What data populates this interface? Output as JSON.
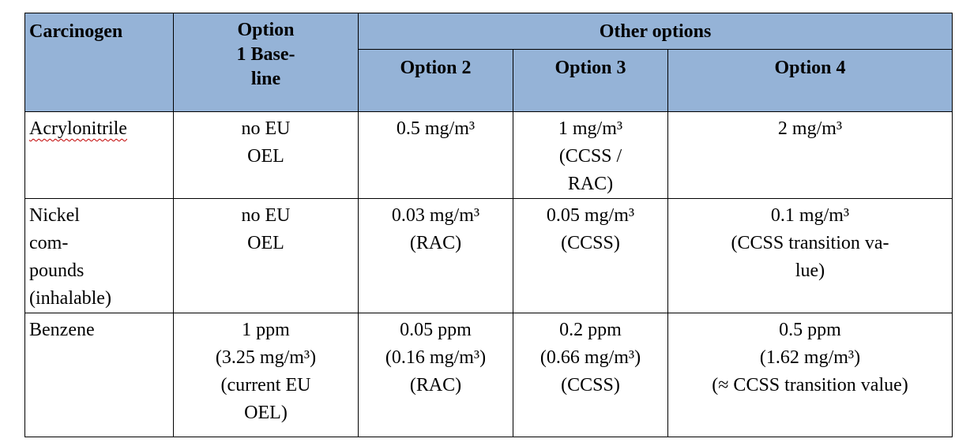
{
  "headers": {
    "carcinogen": "Carcinogen",
    "option1": "Option\n1 Base-\nline",
    "other_options": "Other options",
    "option2": "Option 2",
    "option3": "Option 3",
    "option4": "Option 4"
  },
  "rows": [
    {
      "carcinogen": "Acrylonitrile",
      "option1": "no EU\nOEL",
      "option2": "0.5 mg/m³",
      "option3": "1 mg/m³\n(CCSS /\nRAC)",
      "option4": "2 mg/m³"
    },
    {
      "carcinogen": "Nickel\ncom-\npounds\n(inhalable)",
      "option1": "no EU\nOEL",
      "option2": "0.03 mg/m³\n(RAC)",
      "option3": "0.05 mg/m³\n(CCSS)",
      "option4": "0.1 mg/m³\n(CCSS transition va-\nlue)"
    },
    {
      "carcinogen": "Benzene",
      "option1": "1 ppm\n(3.25 mg/m³)\n(current EU\nOEL)",
      "option2": "0.05 ppm\n(0.16 mg/m³)\n(RAC)",
      "option3": "0.2 ppm\n(0.66 mg/m³)\n(CCSS)",
      "option4": "0.5 ppm\n(1.62 mg/m³)\n(≈ CCSS transition value)"
    }
  ],
  "colors": {
    "header_background": "#95b3d7",
    "spellcheck_underline": "#c00000"
  }
}
